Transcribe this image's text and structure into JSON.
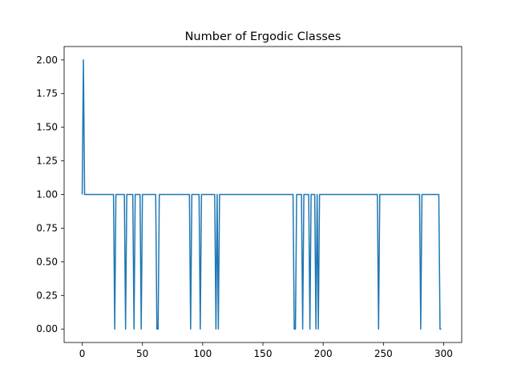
{
  "chart_data": {
    "type": "line",
    "title": "Number of Ergodic Classes",
    "xlabel": "",
    "ylabel": "",
    "xlim": [
      -15,
      315
    ],
    "ylim": [
      -0.1,
      2.1
    ],
    "x_ticks": [
      0,
      50,
      100,
      150,
      200,
      250,
      300
    ],
    "y_ticks": [
      0.0,
      0.25,
      0.5,
      0.75,
      1.0,
      1.25,
      1.5,
      1.75,
      2.0
    ],
    "y_tick_labels": [
      "0.00",
      "0.25",
      "0.50",
      "0.75",
      "1.00",
      "1.25",
      "1.50",
      "1.75",
      "2.00"
    ],
    "grid": false,
    "legend": "none",
    "series": [
      {
        "color": "#1f77b4",
        "points": [
          [
            0,
            1
          ],
          [
            1,
            2
          ],
          [
            2,
            1
          ],
          [
            26,
            1
          ],
          [
            27,
            0
          ],
          [
            28,
            1
          ],
          [
            35,
            1
          ],
          [
            36,
            0
          ],
          [
            37,
            1
          ],
          [
            42,
            1
          ],
          [
            43,
            0
          ],
          [
            44,
            1
          ],
          [
            48,
            1
          ],
          [
            49,
            0
          ],
          [
            50,
            1
          ],
          [
            61,
            1
          ],
          [
            62,
            0
          ],
          [
            63,
            0
          ],
          [
            64,
            1
          ],
          [
            89,
            1
          ],
          [
            90,
            0
          ],
          [
            91,
            1
          ],
          [
            97,
            1
          ],
          [
            98,
            0
          ],
          [
            99,
            1
          ],
          [
            110,
            1
          ],
          [
            111,
            0
          ],
          [
            112,
            1
          ],
          [
            113,
            0
          ],
          [
            114,
            1
          ],
          [
            175,
            1
          ],
          [
            176,
            0
          ],
          [
            177,
            0
          ],
          [
            178,
            1
          ],
          [
            182,
            1
          ],
          [
            183,
            0
          ],
          [
            184,
            1
          ],
          [
            188,
            1
          ],
          [
            189,
            0
          ],
          [
            190,
            1
          ],
          [
            193,
            1
          ],
          [
            194,
            0
          ],
          [
            195,
            1
          ],
          [
            196,
            0
          ],
          [
            197,
            1
          ],
          [
            245,
            1
          ],
          [
            246,
            0
          ],
          [
            247,
            1
          ],
          [
            280,
            1
          ],
          [
            281,
            0
          ],
          [
            282,
            1
          ],
          [
            296,
            1
          ],
          [
            297,
            0
          ],
          [
            298,
            0
          ]
        ]
      }
    ]
  }
}
